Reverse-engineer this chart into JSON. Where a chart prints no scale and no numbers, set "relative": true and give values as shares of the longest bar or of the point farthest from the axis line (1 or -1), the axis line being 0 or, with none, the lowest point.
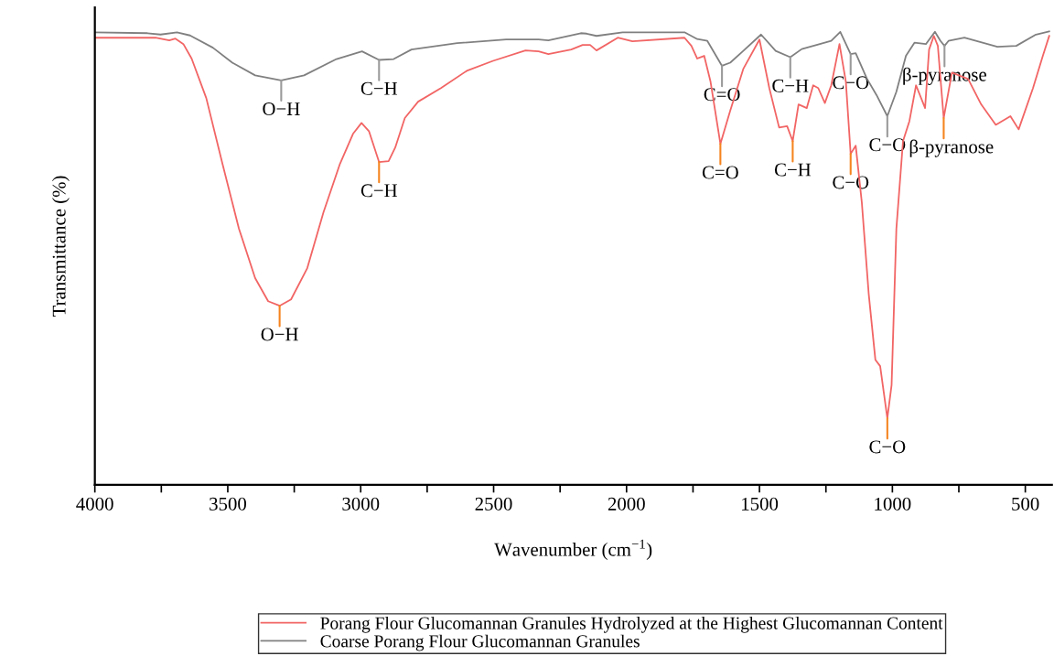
{
  "chart_data": {
    "type": "line",
    "relative": true,
    "xlabel": "Wavenumber (cm$^{−1}$)",
    "ylabel": "Transmittance (%)",
    "xlim": [
      4000,
      400
    ],
    "xticks": [
      4000,
      {
        "value": 3750,
        "label": null
      },
      3500,
      {
        "value": 3250,
        "label": null
      },
      3000,
      {
        "value": 2750,
        "label": null
      },
      2500,
      {
        "value": 2250,
        "label": null
      },
      2000,
      {
        "value": 1750,
        "label": null
      },
      1500,
      {
        "value": 1250,
        "label": null
      },
      1000,
      {
        "value": 750,
        "label": null
      },
      500
    ],
    "tick_labels": "x",
    "grid": false,
    "legend": "bottom",
    "marker": "none",
    "line_style": "solid",
    "series": [
      {
        "name": "Porang Flour Glucomannan Granules Hydrolyzed at the Highest Glucomannan Content",
        "color": "#f26565",
        "x": [
          4000,
          3772,
          3720,
          3697,
          3667,
          3636,
          3581,
          3520,
          3458,
          3397,
          3348,
          3305,
          3262,
          3201,
          3140,
          3078,
          3029,
          2997,
          2969,
          2931,
          2895,
          2870,
          2834,
          2784,
          2698,
          2601,
          2502,
          2380,
          2331,
          2294,
          2208,
          2165,
          2137,
          2113,
          2033,
          1978,
          1782,
          1756,
          1734,
          1708,
          1684,
          1647,
          1610,
          1561,
          1500,
          1463,
          1426,
          1396,
          1375,
          1353,
          1322,
          1298,
          1279,
          1254,
          1230,
          1199,
          1175,
          1157,
          1138,
          1115,
          1089,
          1064,
          1046,
          1019,
          1003,
          985,
          960,
          936,
          911,
          877,
          862,
          844,
          829,
          807,
          776,
          715,
          666,
          611,
          556,
          525,
          471,
          434,
          410
        ],
        "values": [
          0.986,
          0.986,
          0.98,
          0.984,
          0.972,
          0.94,
          0.853,
          0.708,
          0.565,
          0.456,
          0.405,
          0.395,
          0.409,
          0.478,
          0.601,
          0.708,
          0.774,
          0.798,
          0.78,
          0.712,
          0.714,
          0.744,
          0.809,
          0.845,
          0.875,
          0.913,
          0.935,
          0.958,
          0.956,
          0.95,
          0.96,
          0.97,
          0.97,
          0.958,
          0.986,
          0.978,
          0.986,
          0.968,
          0.94,
          0.946,
          0.889,
          0.752,
          0.825,
          0.917,
          0.982,
          0.875,
          0.788,
          0.791,
          0.758,
          0.839,
          0.831,
          0.881,
          0.875,
          0.842,
          0.881,
          0.972,
          0.889,
          0.73,
          0.748,
          0.623,
          0.421,
          0.276,
          0.262,
          0.147,
          0.22,
          0.565,
          0.758,
          0.802,
          0.881,
          0.831,
          0.96,
          0.99,
          0.968,
          0.809,
          0.909,
          0.895,
          0.839,
          0.794,
          0.813,
          0.784,
          0.875,
          0.946,
          0.99
        ]
      },
      {
        "name": "Coarse Porang Flour Glucomannan Granules",
        "color": "#808080",
        "x": [
          4000,
          3802,
          3753,
          3691,
          3642,
          3556,
          3483,
          3397,
          3299,
          3213,
          3091,
          2995,
          2931,
          2876,
          2809,
          2637,
          2453,
          2331,
          2294,
          2172,
          2150,
          2113,
          2015,
          1782,
          1734,
          1696,
          1641,
          1610,
          1561,
          1494,
          1439,
          1384,
          1341,
          1279,
          1230,
          1196,
          1157,
          1138,
          1096,
          1060,
          1019,
          985,
          949,
          917,
          874,
          840,
          819,
          804,
          789,
          729,
          605,
          534,
          460,
          410
        ],
        "values": [
          0.998,
          0.996,
          0.993,
          0.998,
          0.991,
          0.964,
          0.931,
          0.903,
          0.892,
          0.903,
          0.939,
          0.956,
          0.937,
          0.939,
          0.96,
          0.974,
          0.982,
          0.982,
          0.98,
          0.996,
          0.995,
          0.99,
          0.998,
          0.998,
          0.983,
          0.979,
          0.924,
          0.931,
          0.957,
          0.993,
          0.957,
          0.943,
          0.961,
          0.971,
          0.979,
          0.999,
          0.95,
          0.952,
          0.896,
          0.86,
          0.813,
          0.867,
          0.946,
          0.975,
          0.972,
          0.999,
          0.979,
          0.968,
          0.979,
          0.986,
          0.966,
          0.968,
          0.993,
          1.0
        ]
      }
    ],
    "annotations": [
      {
        "text": "O−H",
        "x": 3299,
        "y": 0.892
      },
      {
        "text": "C−H",
        "x": 2931,
        "y": 0.937
      },
      {
        "text": "O−H",
        "x": 3305,
        "y": 0.395
      },
      {
        "text": "C−H",
        "x": 2931,
        "y": 0.712
      },
      {
        "text": "C=O",
        "x": 1641,
        "y": 0.924
      },
      {
        "text": "C−H",
        "x": 1384,
        "y": 0.943
      },
      {
        "text": "C−O",
        "x": 1157,
        "y": 0.95
      },
      {
        "text": "C−O",
        "x": 1019,
        "y": 0.813
      },
      {
        "text": "β-pyranose",
        "x": 804,
        "y": 0.968
      },
      {
        "text": "C=O",
        "x": 1647,
        "y": 0.752
      },
      {
        "text": "C−H",
        "x": 1375,
        "y": 0.758
      },
      {
        "text": "C−O",
        "x": 1157,
        "y": 0.73
      },
      {
        "text": "C−O",
        "x": 1019,
        "y": 0.147
      },
      {
        "text": "β-pyranose",
        "x": 807,
        "y": 0.809
      }
    ]
  }
}
